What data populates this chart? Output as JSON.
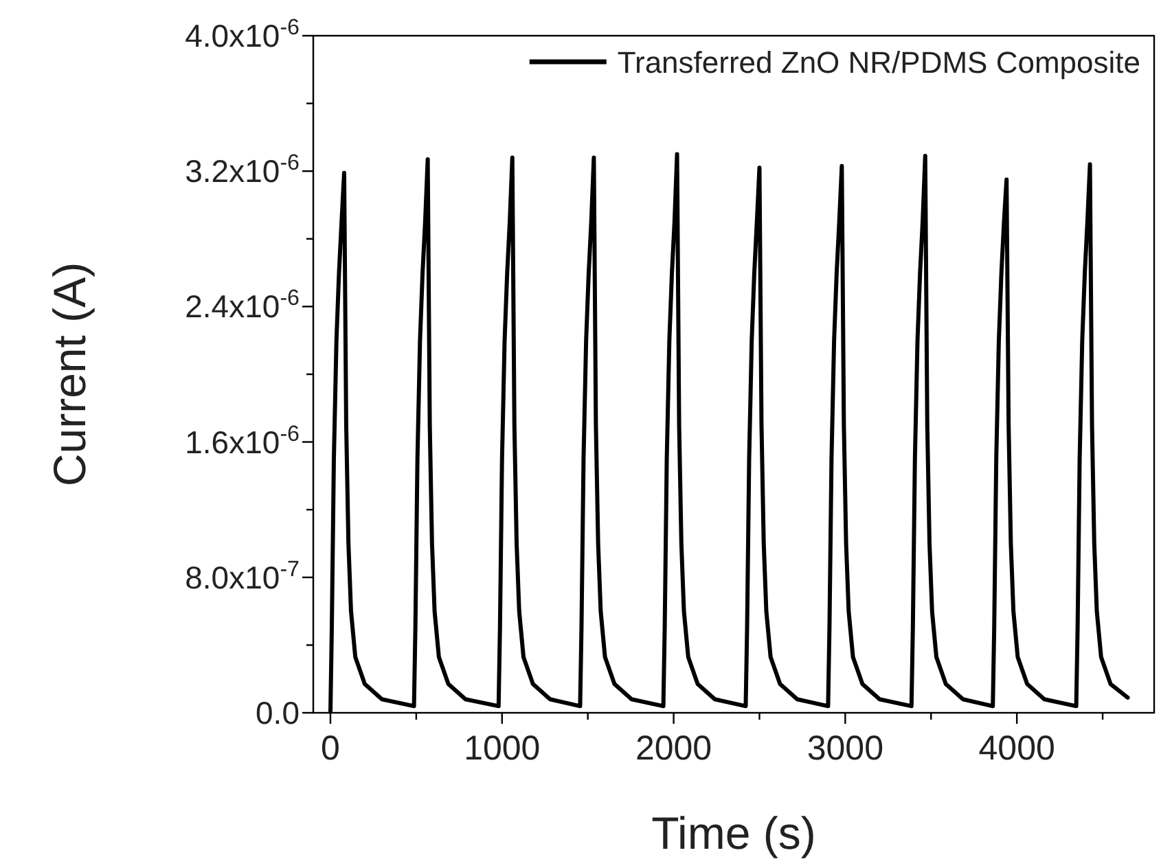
{
  "chart_data": {
    "type": "line",
    "xlabel": "Time (s)",
    "ylabel": "Current (A)",
    "legend": "top right",
    "marker": "none",
    "line_style": "solid",
    "grid": false,
    "xlim": [
      -100,
      4800
    ],
    "ylim": [
      0,
      4e-06
    ],
    "xticks": [
      0,
      {
        "value": 500,
        "label": null
      },
      1000,
      {
        "value": 1500,
        "label": null
      },
      2000,
      {
        "value": 2500,
        "label": null
      },
      3000,
      {
        "value": 3500,
        "label": null
      },
      4000,
      {
        "value": 4500,
        "label": null
      }
    ],
    "yticks": [
      {
        "value": 0,
        "label": "0.0"
      },
      {
        "value": 4e-07,
        "label": null
      },
      {
        "value": 8e-07,
        "label": "8.0x10$^{-7}$"
      },
      {
        "value": 1.2e-06,
        "label": null
      },
      {
        "value": 1.6e-06,
        "label": "1.6x10$^{-6}$"
      },
      {
        "value": 2e-06,
        "label": null
      },
      {
        "value": 2.4e-06,
        "label": "2.4x10$^{-6}$"
      },
      {
        "value": 2.8e-06,
        "label": null
      },
      {
        "value": 3.2e-06,
        "label": "3.2x10$^{-6}$"
      },
      {
        "value": 3.6e-06,
        "label": null
      },
      {
        "value": 4e-06,
        "label": "4.0x10$^{-6}$"
      }
    ],
    "series": [
      {
        "name": "Transferred ZnO NR/PDMS Composite",
        "color": "#000000",
        "x": [
          0,
          8,
          20,
          35,
          50,
          65,
          80,
          92,
          105,
          120,
          145,
          200,
          300,
          484,
          487,
          495,
          507,
          522,
          537,
          552,
          567,
          579,
          592,
          607,
          632,
          687,
          787,
          977,
          980,
          988,
          1000,
          1015,
          1030,
          1045,
          1060,
          1072,
          1085,
          1100,
          1125,
          1180,
          1280,
          1452,
          1455,
          1463,
          1475,
          1490,
          1505,
          1520,
          1535,
          1547,
          1560,
          1575,
          1600,
          1655,
          1755,
          1937,
          1940,
          1948,
          1960,
          1975,
          1990,
          2005,
          2020,
          2032,
          2045,
          2060,
          2085,
          2140,
          2240,
          2417,
          2420,
          2428,
          2440,
          2455,
          2470,
          2485,
          2500,
          2512,
          2525,
          2540,
          2565,
          2620,
          2720,
          2897,
          2900,
          2908,
          2920,
          2935,
          2950,
          2965,
          2980,
          2992,
          3005,
          3020,
          3045,
          3100,
          3200,
          3383,
          3386,
          3394,
          3406,
          3421,
          3436,
          3451,
          3466,
          3478,
          3491,
          3506,
          3531,
          3586,
          3686,
          3857,
          3860,
          3868,
          3880,
          3895,
          3910,
          3925,
          3940,
          3952,
          3965,
          3980,
          4005,
          4060,
          4160,
          4343,
          4346,
          4354,
          4366,
          4381,
          4396,
          4411,
          4426,
          4438,
          4451,
          4466,
          4491,
          4546,
          4646
        ],
        "values": [
          0,
          5e-07,
          1.5e-06,
          2.2e-06,
          2.6e-06,
          2.9e-06,
          3.19e-06,
          1.7e-06,
          1e-06,
          6e-07,
          3.3e-07,
          1.7e-07,
          8e-08,
          4e-08,
          4e-08,
          5e-07,
          1.5e-06,
          2.2e-06,
          2.6e-06,
          2.9e-06,
          3.27e-06,
          1.7e-06,
          1e-06,
          6e-07,
          3.3e-07,
          1.7e-07,
          8e-08,
          4e-08,
          4e-08,
          5e-07,
          1.5e-06,
          2.2e-06,
          2.6e-06,
          2.9e-06,
          3.28e-06,
          1.7e-06,
          1e-06,
          6e-07,
          3.3e-07,
          1.7e-07,
          8e-08,
          4e-08,
          4e-08,
          5e-07,
          1.5e-06,
          2.2e-06,
          2.6e-06,
          2.9e-06,
          3.28e-06,
          1.7e-06,
          1e-06,
          6e-07,
          3.3e-07,
          1.7e-07,
          8e-08,
          4e-08,
          4e-08,
          5e-07,
          1.5e-06,
          2.2e-06,
          2.6e-06,
          2.9e-06,
          3.3e-06,
          1.7e-06,
          1e-06,
          6e-07,
          3.3e-07,
          1.7e-07,
          8e-08,
          4e-08,
          4e-08,
          5e-07,
          1.5e-06,
          2.2e-06,
          2.6e-06,
          2.9e-06,
          3.22e-06,
          1.7e-06,
          1e-06,
          6e-07,
          3.3e-07,
          1.7e-07,
          8e-08,
          4e-08,
          4e-08,
          5e-07,
          1.5e-06,
          2.2e-06,
          2.6e-06,
          2.9e-06,
          3.23e-06,
          1.7e-06,
          1e-06,
          6e-07,
          3.3e-07,
          1.7e-07,
          8e-08,
          4e-08,
          4e-08,
          5e-07,
          1.5e-06,
          2.2e-06,
          2.6e-06,
          2.9e-06,
          3.29e-06,
          1.7e-06,
          1e-06,
          6e-07,
          3.3e-07,
          1.7e-07,
          8e-08,
          4e-08,
          4e-08,
          5e-07,
          1.5e-06,
          2.2e-06,
          2.6e-06,
          2.9e-06,
          3.15e-06,
          1.7e-06,
          1e-06,
          6e-07,
          3.3e-07,
          1.7e-07,
          8e-08,
          4e-08,
          4e-08,
          5e-07,
          1.5e-06,
          2.2e-06,
          2.6e-06,
          2.9e-06,
          3.24e-06,
          1.7e-06,
          1e-06,
          6e-07,
          3.3e-07,
          1.7e-07,
          9e-08
        ]
      }
    ]
  }
}
